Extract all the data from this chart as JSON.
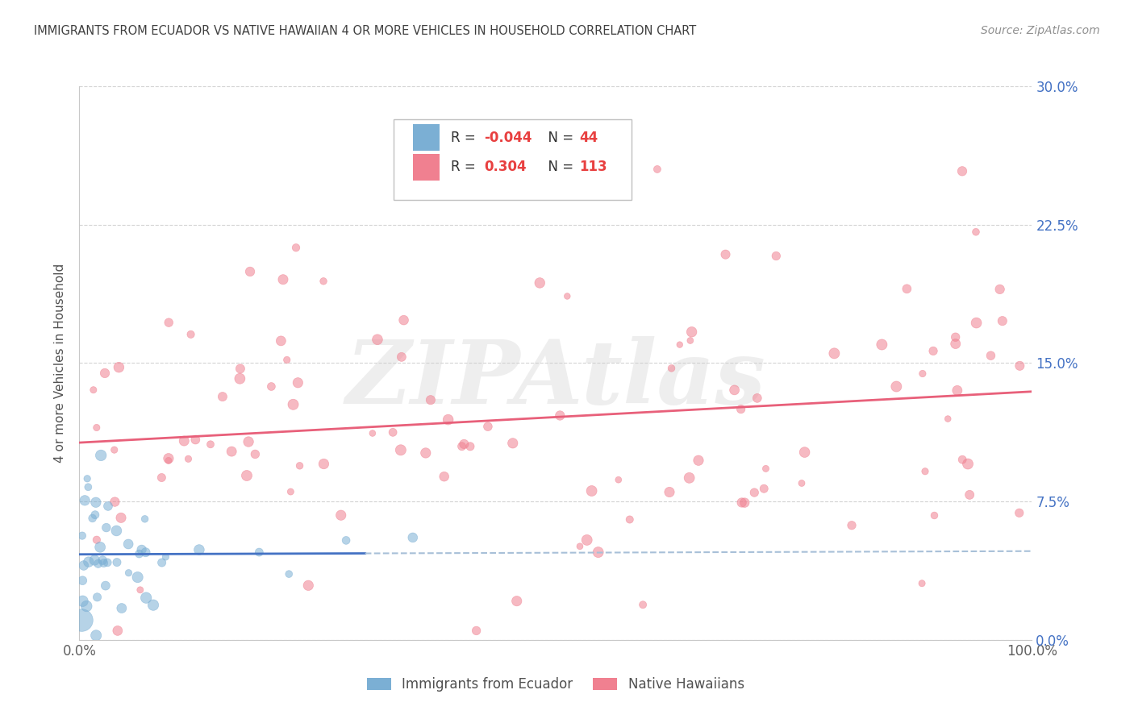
{
  "title": "IMMIGRANTS FROM ECUADOR VS NATIVE HAWAIIAN 4 OR MORE VEHICLES IN HOUSEHOLD CORRELATION CHART",
  "source": "Source: ZipAtlas.com",
  "ylabel": "4 or more Vehicles in Household",
  "series1_label": "Immigrants from Ecuador",
  "series2_label": "Native Hawaiians",
  "series1_color": "#7bafd4",
  "series2_color": "#f08090",
  "series1_R": -0.044,
  "series1_N": 44,
  "series2_R": 0.304,
  "series2_N": 113,
  "background_color": "#ffffff",
  "grid_color": "#c8c8c8",
  "title_color": "#404040",
  "right_ytick_color": "#4472c4",
  "watermark_text": "ZIPAtlas",
  "watermark_color": "#d0d0d0",
  "trend_line1_color": "#4472c4",
  "trend_line2_color": "#e8607a",
  "dashed_line_color": "#a8c0d8",
  "xlim": [
    0,
    100
  ],
  "ylim": [
    0,
    30
  ],
  "ytick_values": [
    0,
    7.5,
    15.0,
    22.5,
    30.0
  ],
  "ytick_labels": [
    "0.0%",
    "7.5%",
    "15.0%",
    "22.5%",
    "30.0%"
  ],
  "xtick_values": [
    0,
    100
  ],
  "xtick_labels": [
    "0.0%",
    "100.0%"
  ],
  "legend_R1": "-0.044",
  "legend_N1": "44",
  "legend_R2": "0.304",
  "legend_N2": "113",
  "legend_R_color": "#e84040",
  "legend_N_color": "#e84040",
  "legend_text_color": "#303030"
}
